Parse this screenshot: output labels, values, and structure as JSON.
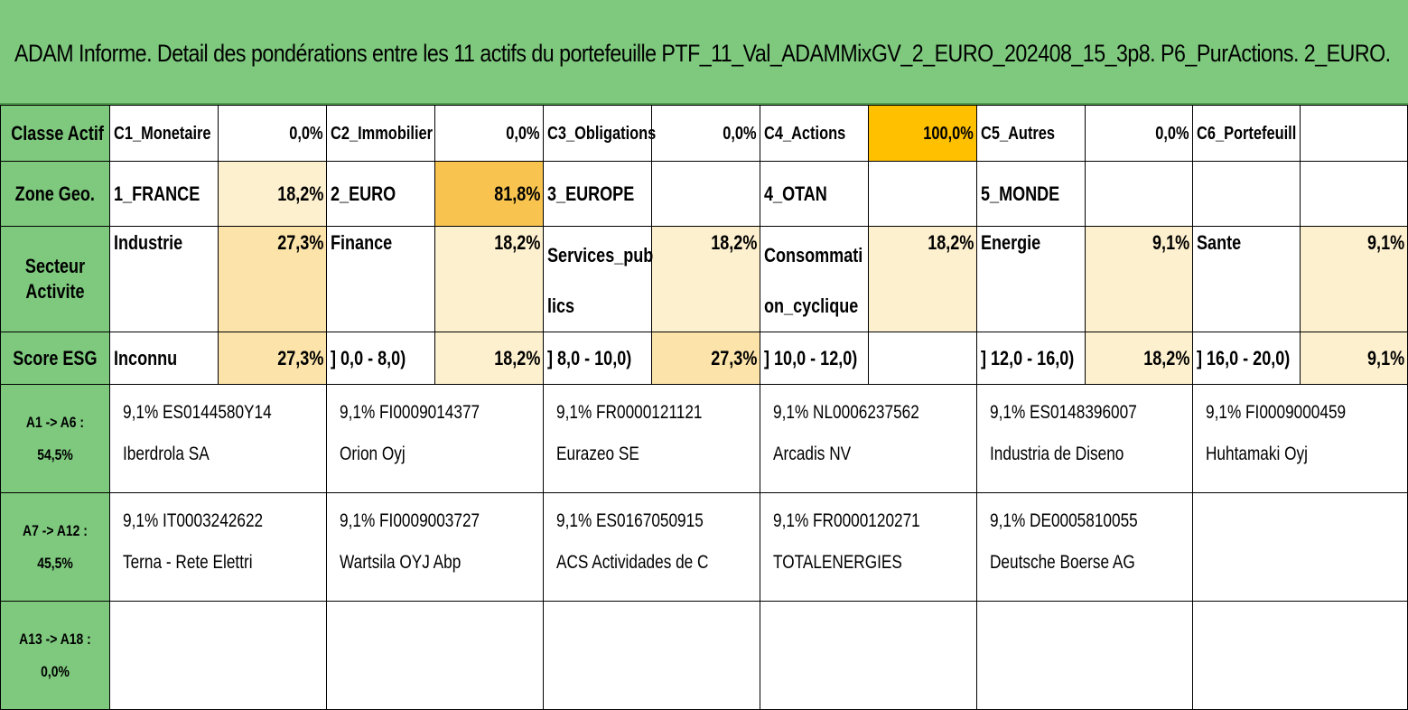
{
  "title": "ADAM Informe. Detail des pondérations entre les 11 actifs du portefeuille PTF_11_Val_ADAMMixGV_2_EURO_202408_15_3p8. P6_PurActions. 2_EURO.",
  "rows": {
    "classe": {
      "header": "Classe Actif",
      "cells": [
        {
          "label": "C1_Monetaire",
          "value": "0,0%"
        },
        {
          "label": "C2_Immobilier",
          "value": "0,0%"
        },
        {
          "label": "C3_Obligations",
          "value": "0,0%"
        },
        {
          "label": "C4_Actions",
          "value": "100,0%"
        },
        {
          "label": "C5_Autres",
          "value": "0,0%"
        },
        {
          "label": "C6_Portefeuill",
          "value": ""
        }
      ]
    },
    "zone": {
      "header": "Zone Geo.",
      "cells": [
        {
          "label": "1_FRANCE",
          "value": "18,2%"
        },
        {
          "label": "2_EURO",
          "value": "81,8%"
        },
        {
          "label": "3_EUROPE",
          "value": ""
        },
        {
          "label": "4_OTAN",
          "value": ""
        },
        {
          "label": "5_MONDE",
          "value": ""
        },
        {
          "label": "",
          "value": ""
        }
      ]
    },
    "secteur": {
      "header_line1": "Secteur",
      "header_line2": "Activite",
      "cells": [
        {
          "label": "Industrie",
          "value": "27,3%"
        },
        {
          "label": "Finance",
          "value": "18,2%"
        },
        {
          "label": "Services_pub lics",
          "value": "18,2%"
        },
        {
          "label": "Consommati on_cyclique",
          "value": "18,2%"
        },
        {
          "label": "Energie",
          "value": "9,1%"
        },
        {
          "label": "Sante",
          "value": "9,1%"
        }
      ]
    },
    "esg": {
      "header": "Score ESG",
      "cells": [
        {
          "label": "Inconnu",
          "value": "27,3%"
        },
        {
          "label": "] 0,0 - 8,0)",
          "value": "18,2%"
        },
        {
          "label": "] 8,0 - 10,0)",
          "value": "27,3%"
        },
        {
          "label": "] 10,0 - 12,0)",
          "value": ""
        },
        {
          "label": "] 12,0 - 16,0)",
          "value": "18,2%"
        },
        {
          "label": "] 16,0 - 20,0)",
          "value": "9,1%"
        }
      ]
    }
  },
  "asset_groups": [
    {
      "header_line1": "A1 -> A6 :",
      "header_line2": "54,5%",
      "assets": [
        {
          "line1": "9,1% ES0144580Y14",
          "line2": "Iberdrola SA"
        },
        {
          "line1": "9,1% FI0009014377",
          "line2": "Orion Oyj"
        },
        {
          "line1": "9,1% FR0000121121",
          "line2": "Eurazeo SE"
        },
        {
          "line1": "9,1% NL0006237562",
          "line2": "Arcadis NV"
        },
        {
          "line1": "9,1% ES0148396007",
          "line2": "Industria de Diseno"
        },
        {
          "line1": "9,1% FI0009000459",
          "line2": "Huhtamaki Oyj"
        }
      ]
    },
    {
      "header_line1": "A7 -> A12 :",
      "header_line2": "45,5%",
      "assets": [
        {
          "line1": "9,1% IT0003242622",
          "line2": "Terna - Rete Elettri"
        },
        {
          "line1": "9,1% FI0009003727",
          "line2": "Wartsila OYJ Abp"
        },
        {
          "line1": "9,1% ES0167050915",
          "line2": "ACS Actividades de C"
        },
        {
          "line1": "9,1% FR0000120271",
          "line2": "TOTALENERGIES"
        },
        {
          "line1": "9,1% DE0005810055",
          "line2": "Deutsche Boerse AG"
        },
        {
          "line1": "",
          "line2": ""
        }
      ]
    },
    {
      "header_line1": "A13 -> A18 :",
      "header_line2": "0,0%",
      "assets": [
        {
          "line1": "",
          "line2": ""
        },
        {
          "line1": "",
          "line2": ""
        },
        {
          "line1": "",
          "line2": ""
        },
        {
          "line1": "",
          "line2": ""
        },
        {
          "line1": "",
          "line2": ""
        },
        {
          "line1": "",
          "line2": ""
        }
      ]
    }
  ]
}
